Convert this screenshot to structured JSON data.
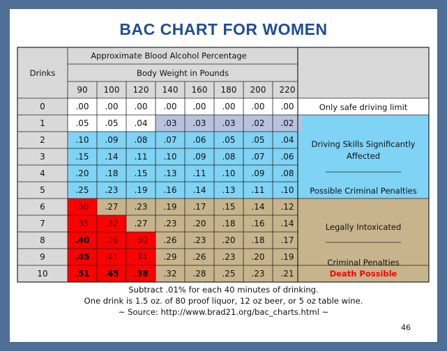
{
  "slide_title": "BAC CHART FOR WOMEN",
  "page_number": "46",
  "notes": [
    "Subtract .01% for each 40 minutes of drinking.",
    "One drink is 1.5 oz. of 80 proof liquor, 12 oz beer, or 5 oz table wine.",
    "~ Source:  http://www.brad21.org/bac_charts.html ~"
  ],
  "colors": {
    "background": "#4f6e96",
    "header_gray": "#d9d9d9",
    "safe_lavender": "#b8c2df",
    "blue": "#7fd3f4",
    "tan": "#c7b48c",
    "red": "#ff0000",
    "title": "#1f4e92",
    "red_text": "#ff0000"
  },
  "chart_data": {
    "type": "table",
    "title": "BAC CHART FOR WOMEN",
    "header_top": "Approximate Blood Alcohol Percentage",
    "col_header_label": "Drinks",
    "weight_header": "Body Weight in Pounds",
    "weights": [
      "90",
      "100",
      "120",
      "140",
      "160",
      "180",
      "200",
      "220"
    ],
    "drinks": [
      "0",
      "1",
      "2",
      "3",
      "4",
      "5",
      "6",
      "7",
      "8",
      "9",
      "10"
    ],
    "values": [
      [
        ".00",
        ".00",
        ".00",
        ".00",
        ".00",
        ".00",
        ".00",
        ".00"
      ],
      [
        ".05",
        ".05",
        ".04",
        ".03",
        ".03",
        ".03",
        ".02",
        ".02"
      ],
      [
        ".10",
        ".09",
        ".08",
        ".07",
        ".06",
        ".05",
        ".05",
        ".04"
      ],
      [
        ".15",
        ".14",
        ".11",
        ".10",
        ".09",
        ".08",
        ".07",
        ".06"
      ],
      [
        ".20",
        ".18",
        ".15",
        ".13",
        ".11",
        ".10",
        ".09",
        ".08"
      ],
      [
        ".25",
        ".23",
        ".19",
        ".16",
        ".14",
        ".13",
        ".11",
        ".10"
      ],
      [
        ".30",
        ".27",
        ".23",
        ".19",
        ".17",
        ".15",
        ".14",
        ".12"
      ],
      [
        ".35",
        ".32",
        ".27",
        ".23",
        ".20",
        ".18",
        ".16",
        ".14"
      ],
      [
        ".40",
        ".36",
        ".30",
        ".26",
        ".23",
        ".20",
        ".18",
        ".17"
      ],
      [
        ".45",
        ".41",
        ".34",
        ".29",
        ".26",
        ".23",
        ".20",
        ".19"
      ],
      [
        ".51",
        ".45",
        ".38",
        ".32",
        ".28",
        ".25",
        ".23",
        ".21"
      ]
    ],
    "cell_zone": [
      [
        "white",
        "white",
        "white",
        "white",
        "white",
        "white",
        "white",
        "white"
      ],
      [
        "white",
        "white",
        "white",
        "safe",
        "safe",
        "safe",
        "safe",
        "safe"
      ],
      [
        "blue",
        "blue",
        "blue",
        "blue",
        "blue",
        "blue",
        "blue",
        "blue"
      ],
      [
        "blue",
        "blue",
        "blue",
        "blue",
        "blue",
        "blue",
        "blue",
        "blue"
      ],
      [
        "blue",
        "blue",
        "blue",
        "blue",
        "blue",
        "blue",
        "blue",
        "blue"
      ],
      [
        "blue",
        "blue",
        "blue",
        "blue",
        "blue",
        "blue",
        "blue",
        "blue"
      ],
      [
        "red",
        "tan",
        "tan",
        "tan",
        "tan",
        "tan",
        "tan",
        "tan"
      ],
      [
        "red",
        "red",
        "tan",
        "tan",
        "tan",
        "tan",
        "tan",
        "tan"
      ],
      [
        "red",
        "red",
        "red",
        "tan",
        "tan",
        "tan",
        "tan",
        "tan"
      ],
      [
        "red",
        "red",
        "red",
        "tan",
        "tan",
        "tan",
        "tan",
        "tan"
      ],
      [
        "red",
        "red",
        "red",
        "tan",
        "tan",
        "tan",
        "tan",
        "tan"
      ]
    ],
    "bold_cells": [
      [
        8,
        0
      ],
      [
        9,
        0
      ],
      [
        10,
        0
      ],
      [
        10,
        1
      ],
      [
        10,
        2
      ]
    ],
    "legend": {
      "safe": "Only safe driving limit",
      "skills_line1": "Driving Skills Significantly",
      "skills_line2": "Affected",
      "possible": "Possible  Criminal Penalties",
      "intoxicated": "Legally Intoxicated",
      "criminal": "Criminal Penalties",
      "death": "Death Possible"
    }
  }
}
